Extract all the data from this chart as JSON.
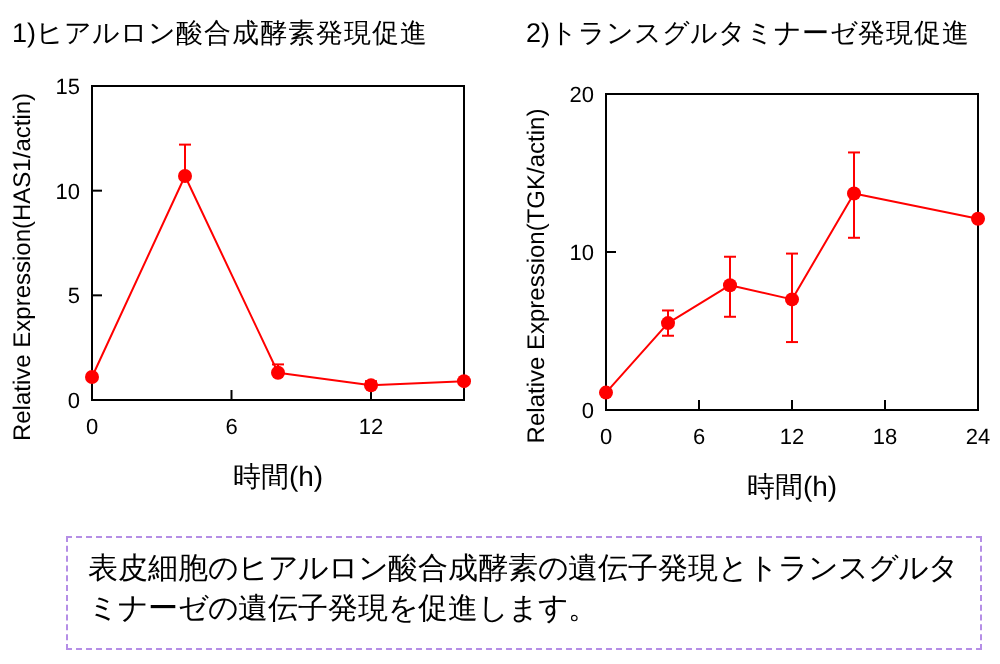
{
  "chart_data": [
    {
      "type": "line",
      "title": "1)ヒアルロン酸合成酵素発現促進",
      "xlabel": "時間(h)",
      "ylabel": "Relative Expression(HAS1/actin)",
      "x": [
        0,
        4,
        8,
        12,
        16
      ],
      "marker": "circle",
      "line_style": "solid",
      "series": [
        {
          "color": "#ff0000",
          "values": [
            1.1,
            10.7,
            1.3,
            0.7,
            0.9
          ],
          "errors": [
            null,
            [
              10.7,
              12.2
            ],
            [
              1.3,
              1.7
            ],
            [
              0.7,
              0.9
            ],
            null
          ]
        }
      ],
      "xlim": [
        0,
        16
      ],
      "xticks": [
        0,
        6,
        12
      ],
      "ylim": [
        0,
        15
      ],
      "yticks": [
        0,
        5,
        10,
        15
      ]
    },
    {
      "type": "line",
      "title": "2)トランスグルタミナーゼ発現促進",
      "xlabel": "時間(h)",
      "ylabel": "Relative Expression(TGK/actin)",
      "x": [
        0,
        4,
        8,
        12,
        16,
        24
      ],
      "marker": "circle",
      "line_style": "solid",
      "series": [
        {
          "color": "#ff0000",
          "values": [
            1.1,
            5.5,
            7.9,
            7.0,
            13.7,
            12.1
          ],
          "errors": [
            null,
            [
              4.7,
              6.3
            ],
            [
              5.9,
              9.7
            ],
            [
              4.3,
              9.9
            ],
            [
              10.9,
              16.3
            ],
            null
          ]
        }
      ],
      "xlim": [
        0,
        24
      ],
      "xticks": [
        0,
        6,
        12,
        18,
        24
      ],
      "ylim": [
        0,
        20
      ],
      "yticks": [
        0,
        10,
        20
      ],
      "annotations": [
        "表皮細胞のヒアルロン酸合成酵素の遺伝子発現とトランスグルタミナーゼの遺伝子発現を促進します。"
      ]
    }
  ]
}
